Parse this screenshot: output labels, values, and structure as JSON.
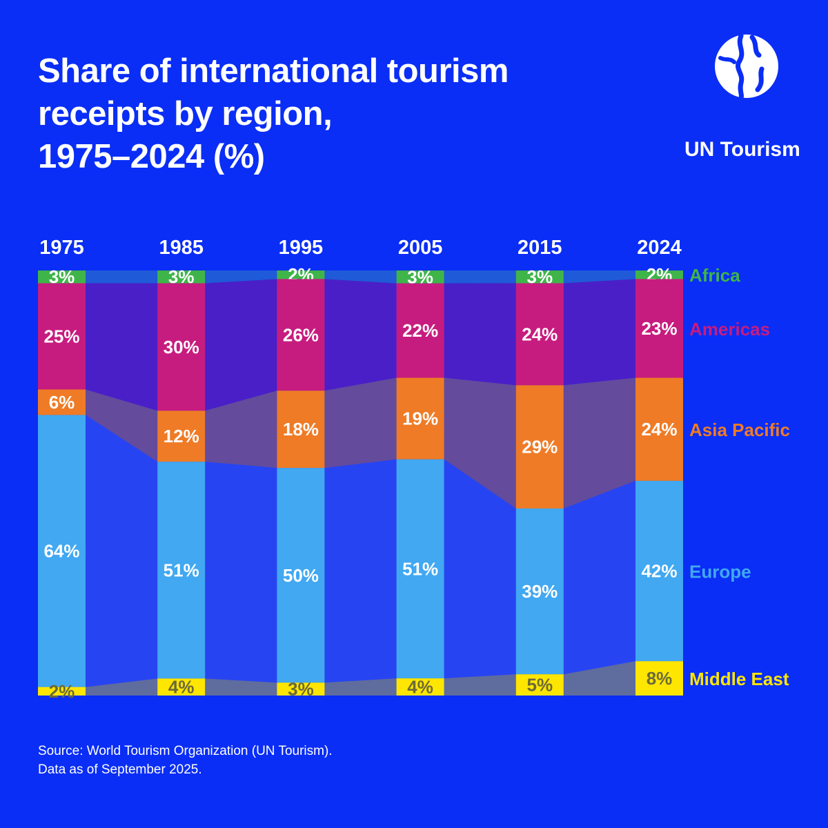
{
  "title_lines": [
    "Share of international tourism",
    "receipts by region,",
    "1975–2024 (%)"
  ],
  "logo": {
    "name": "UN Tourism"
  },
  "source_lines": [
    "Source: World Tourism Organization (UN Tourism).",
    "Data as of September 2025."
  ],
  "chart_data": {
    "type": "bar",
    "stacked": true,
    "categories": [
      "1975",
      "1985",
      "1995",
      "2005",
      "2015",
      "2024"
    ],
    "series": [
      {
        "name": "Africa",
        "color": "#3fb549",
        "label_color": "#3fb549",
        "values": [
          3,
          3,
          2,
          3,
          3,
          2
        ]
      },
      {
        "name": "Americas",
        "color": "#c71c7f",
        "label_color": "#c71c7f",
        "values": [
          25,
          30,
          26,
          22,
          24,
          23
        ]
      },
      {
        "name": "Asia Pacific",
        "color": "#ef7b26",
        "label_color": "#ef7b26",
        "values": [
          6,
          12,
          18,
          19,
          29,
          24
        ]
      },
      {
        "name": "Europe",
        "color": "#41a8f1",
        "label_color": "#41a8f1",
        "values": [
          64,
          51,
          50,
          51,
          39,
          42
        ]
      },
      {
        "name": "Middle East",
        "color": "#ffe600",
        "label_color": "#ffe600",
        "values": [
          2,
          4,
          3,
          4,
          5,
          8
        ]
      }
    ],
    "value_suffix": "%",
    "ylim": [
      0,
      100
    ],
    "legend_placement": "right"
  }
}
